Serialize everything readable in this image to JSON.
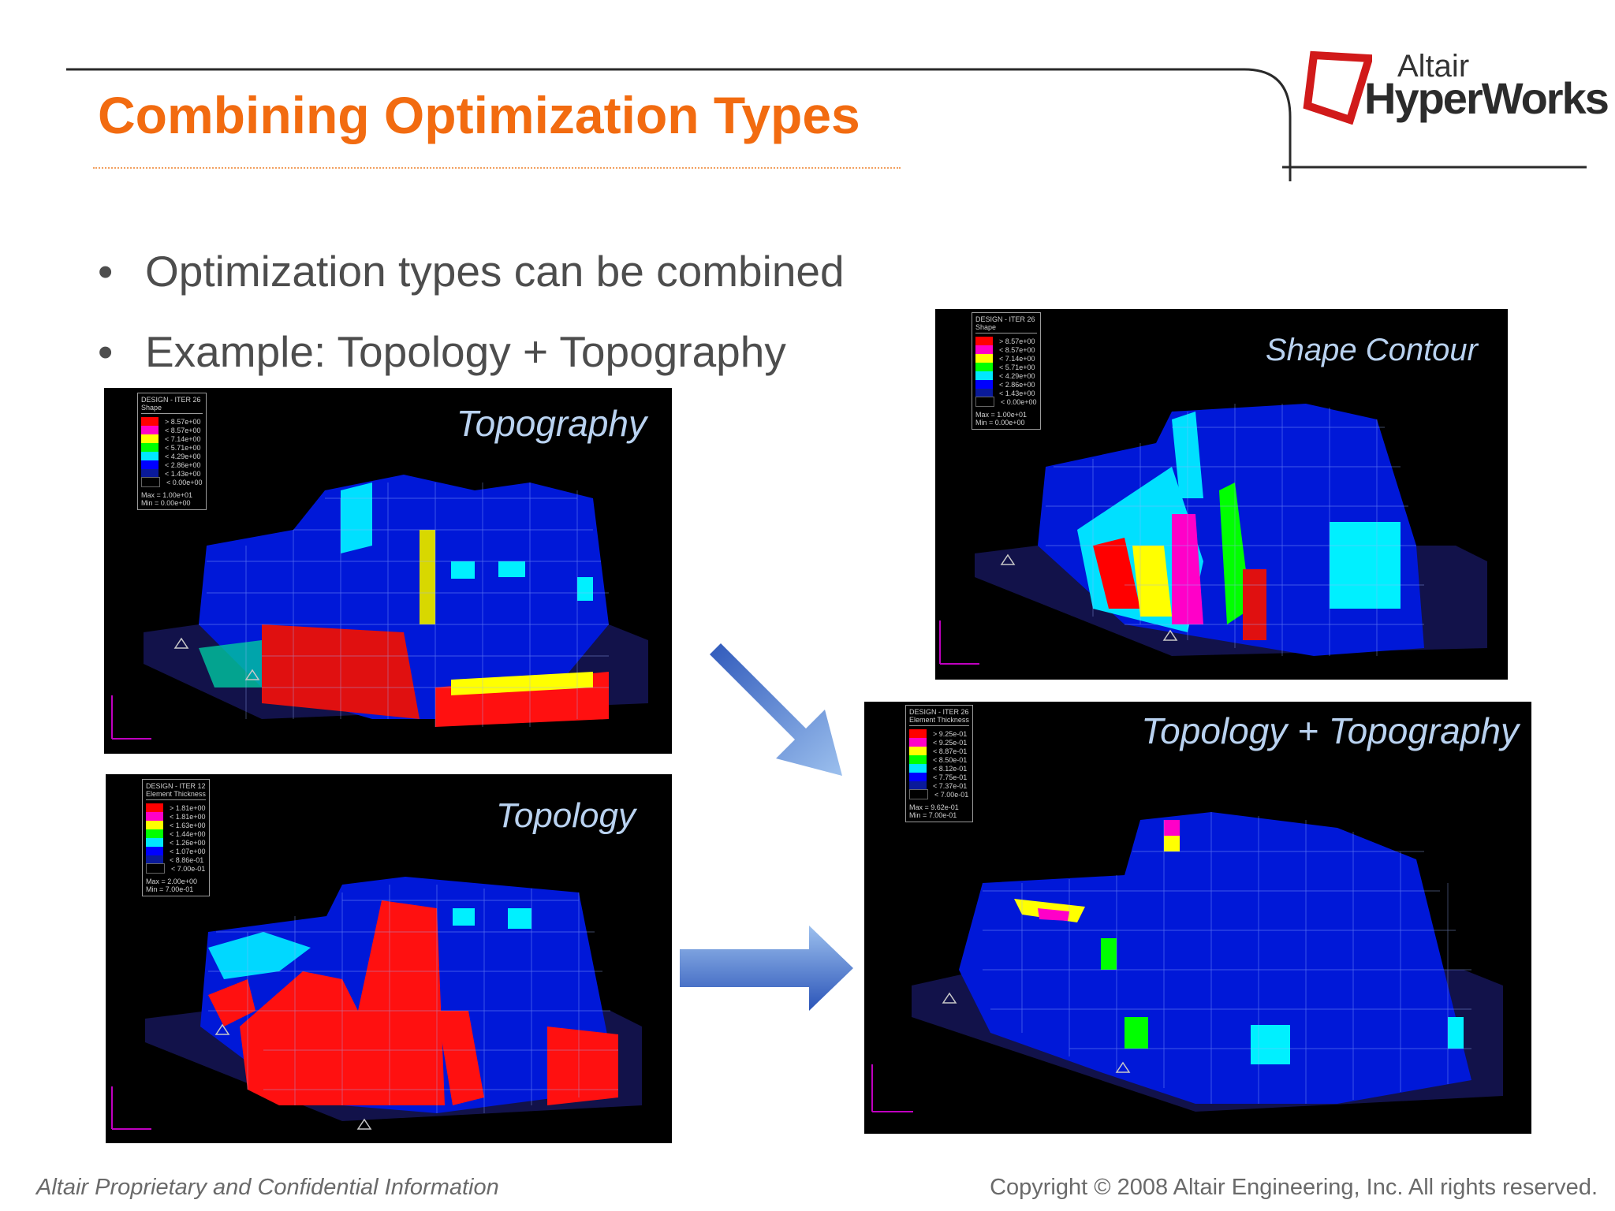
{
  "slide": {
    "title": "Combining Optimization Types",
    "bullets": [
      "Optimization types can be combined",
      "Example: Topology + Topography"
    ],
    "bullet_char": "•"
  },
  "logo": {
    "brand_small": "Altair",
    "brand_large": "HyperWorks"
  },
  "panels": {
    "topography": {
      "label": "Topography",
      "legend": {
        "header1": "DESIGN - ITER 26",
        "header2": "Shape",
        "items": [
          "> 8.57e+00",
          "< 8.57e+00",
          "< 7.14e+00",
          "< 5.71e+00",
          "< 4.29e+00",
          "< 2.86e+00",
          "< 1.43e+00",
          "< 0.00e+00"
        ],
        "max": "Max = 1.00e+01",
        "min": "Min = 0.00e+00"
      }
    },
    "shape": {
      "label": "Shape Contour",
      "legend": {
        "header1": "DESIGN - ITER 26",
        "header2": "Shape",
        "items": [
          "> 8.57e+00",
          "< 8.57e+00",
          "< 7.14e+00",
          "< 5.71e+00",
          "< 4.29e+00",
          "< 2.86e+00",
          "< 1.43e+00",
          "< 0.00e+00"
        ],
        "max": "Max = 1.00e+01",
        "min": "Min = 0.00e+00"
      }
    },
    "topology": {
      "label": "Topology",
      "legend": {
        "header1": "DESIGN - ITER 12",
        "header2": "Element Thickness",
        "items": [
          "> 1.81e+00",
          "< 1.81e+00",
          "< 1.63e+00",
          "< 1.44e+00",
          "< 1.26e+00",
          "< 1.07e+00",
          "< 8.86e-01",
          "< 7.00e-01"
        ],
        "max": "Max = 2.00e+00",
        "min": "Min = 7.00e-01"
      }
    },
    "combined": {
      "label": "Topology + Topography",
      "legend": {
        "header1": "DESIGN - ITER 26",
        "header2": "Element Thickness",
        "items": [
          "> 9.25e-01",
          "< 9.25e-01",
          "< 8.87e-01",
          "< 8.50e-01",
          "< 8.12e-01",
          "< 7.75e-01",
          "< 7.37e-01",
          "< 7.00e-01"
        ],
        "max": "Max = 9.62e-01",
        "min": "Min = 7.00e-01"
      }
    }
  },
  "legend_colors": [
    "#ff0000",
    "#ff00c8",
    "#ffff00",
    "#00ff00",
    "#00e8ff",
    "#0000ff",
    "#0a1a9a",
    "#000000"
  ],
  "footer": {
    "left": "Altair Proprietary and Confidential Information",
    "right": "Copyright © 2008 Altair Engineering, Inc. All rights reserved."
  }
}
